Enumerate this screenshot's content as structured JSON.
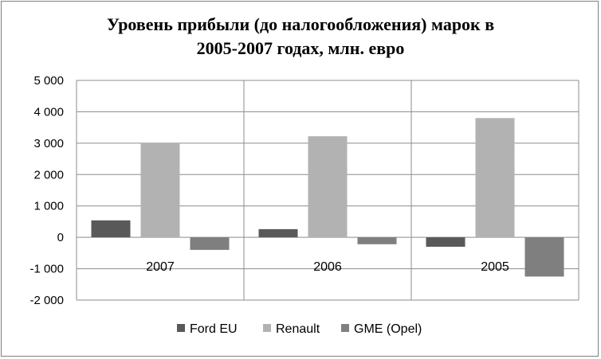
{
  "chart_data": {
    "type": "bar",
    "title_line1": "Уровень прибыли (до налогообложения) марок в",
    "title_line2": "2005-2007 годах, млн. евро",
    "categories": [
      "2007",
      "2006",
      "2005"
    ],
    "series": [
      {
        "name": "Ford EU",
        "values": [
          540,
          260,
          -300
        ],
        "color": "#595959"
      },
      {
        "name": "Renault",
        "values": [
          3000,
          3220,
          3800
        ],
        "color": "#b2b2b2"
      },
      {
        "name": "GME (Opel)",
        "values": [
          -400,
          -220,
          -1250
        ],
        "color": "#7f7f7f"
      }
    ],
    "ylim": [
      -2000,
      5000
    ],
    "yticks": [
      5000,
      4000,
      3000,
      2000,
      1000,
      0,
      -1000,
      -2000
    ],
    "ytick_labels": [
      "5 000",
      "4 000",
      "3 000",
      "2 000",
      "1 000",
      "0",
      "-1 000",
      "-2 000"
    ],
    "grid": "horizontal-and-category-separators",
    "legend_position": "bottom"
  }
}
